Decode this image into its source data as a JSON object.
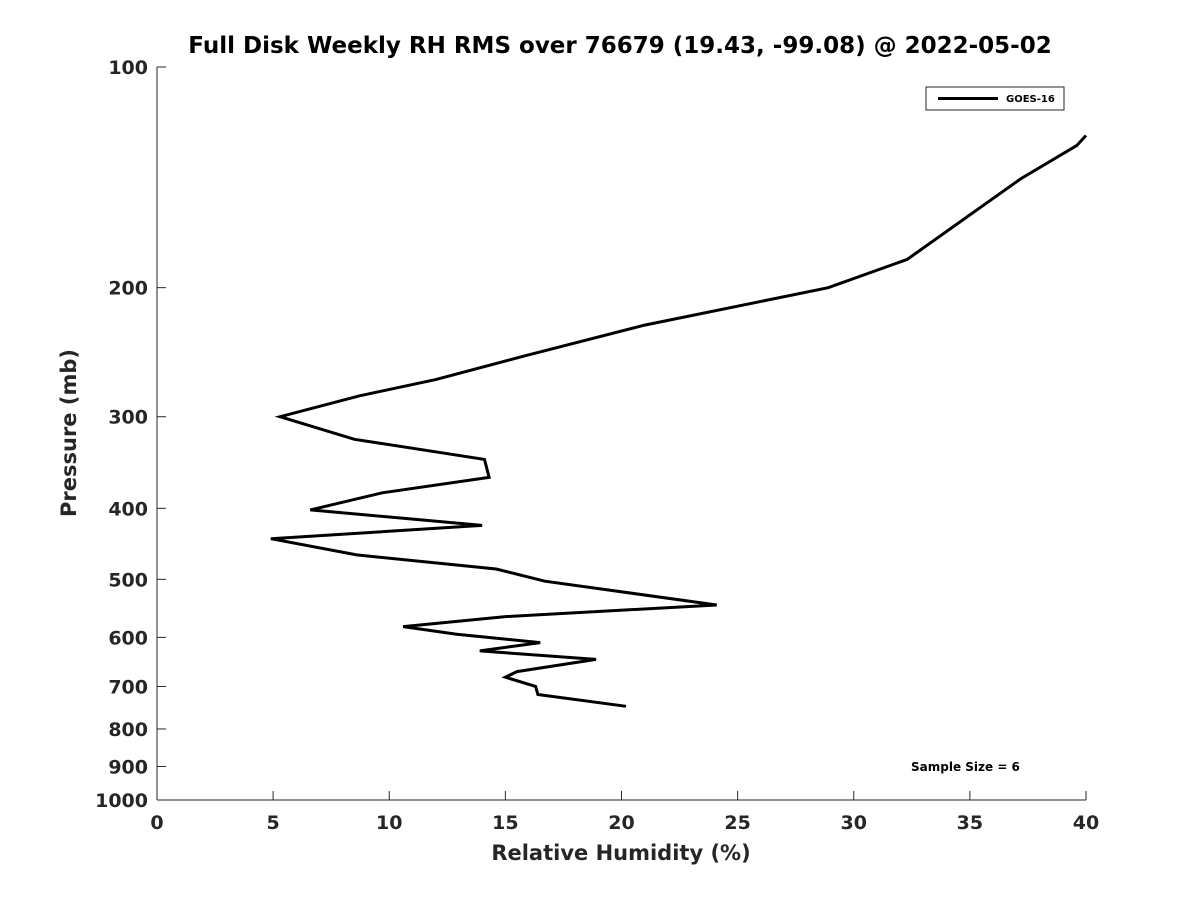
{
  "chart_data": {
    "type": "line",
    "title": "Full Disk Weekly RH RMS over 76679 (19.43, -99.08) @ 2022-05-02",
    "xlabel": "Relative Humidity (%)",
    "ylabel": "Pressure (mb)",
    "xlim": [
      0,
      40
    ],
    "ylim": [
      100,
      1000
    ],
    "y_scale": "log",
    "y_reversed": true,
    "x_ticks": [
      0,
      5,
      10,
      15,
      20,
      25,
      30,
      35,
      40
    ],
    "y_ticks": [
      100,
      200,
      300,
      400,
      500,
      600,
      700,
      800,
      900,
      1000
    ],
    "grid": false,
    "legend_position": "top-right",
    "series": [
      {
        "name": "GOES-16",
        "color": "#000000",
        "x": [
          40.0,
          39.6,
          37.2,
          32.3,
          28.9,
          21.0,
          15.8,
          12.0,
          8.7,
          5.3,
          8.5,
          14.1,
          14.3,
          9.7,
          6.6,
          14.0,
          4.9,
          8.6,
          14.6,
          16.7,
          24.1,
          15.0,
          10.6,
          12.9,
          16.5,
          13.9,
          18.9,
          15.5,
          15.0,
          16.3,
          16.4,
          20.2
        ],
        "y": [
          124,
          128,
          142,
          183,
          200,
          225,
          248,
          267,
          281,
          300,
          322,
          343,
          363,
          381,
          402,
          422,
          440,
          463,
          484,
          503,
          542,
          562,
          580,
          594,
          610,
          626,
          643,
          668,
          680,
          700,
          718,
          745
        ]
      }
    ]
  },
  "annotation": "Sample Size = 6"
}
